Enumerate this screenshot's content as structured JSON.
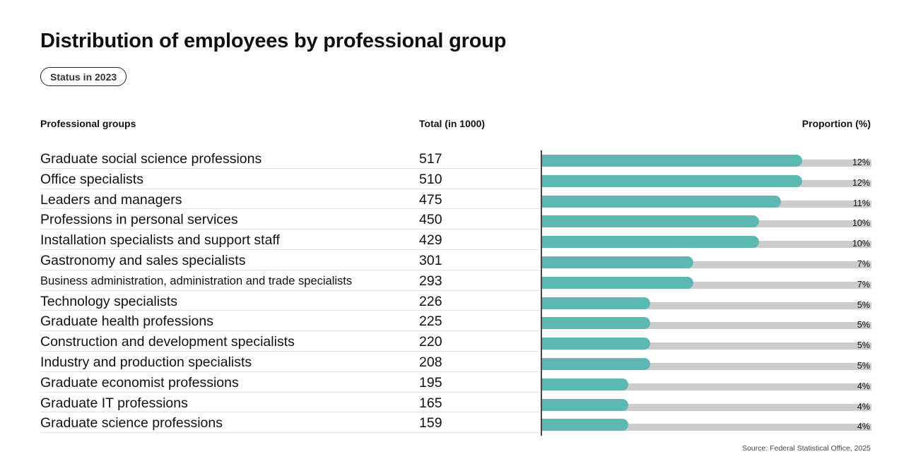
{
  "chart_data": {
    "type": "bar",
    "orientation": "horizontal",
    "title": "Distribution of employees by professional group",
    "subtitle": "Status in 2023",
    "column_headers": {
      "groups": "Professional groups",
      "total": "Total (in 1000)",
      "proportion": "Proportion (%)"
    },
    "categories": [
      "Graduate social science professions",
      "Office specialists",
      "Leaders and managers",
      "Professions in personal services",
      "Installation specialists and support staff",
      "Gastronomy and sales specialists",
      "Business administration, administration and trade specialists",
      "Technology specialists",
      "Graduate health professions",
      "Construction and development specialists",
      "Industry and production specialists",
      "Graduate economist professions",
      "Graduate IT professions",
      "Graduate science professions"
    ],
    "totals": [
      517,
      510,
      475,
      450,
      429,
      301,
      293,
      226,
      225,
      220,
      208,
      195,
      165,
      159
    ],
    "values": [
      12,
      12,
      11,
      10,
      10,
      7,
      7,
      5,
      5,
      5,
      5,
      4,
      4,
      4
    ],
    "value_suffix": "%",
    "xlim": [
      0,
      15
    ],
    "source": "Source: Federal Statistical Office, 2025",
    "colors": {
      "bar": "#5cb8b2",
      "track": "#cccccc"
    }
  }
}
